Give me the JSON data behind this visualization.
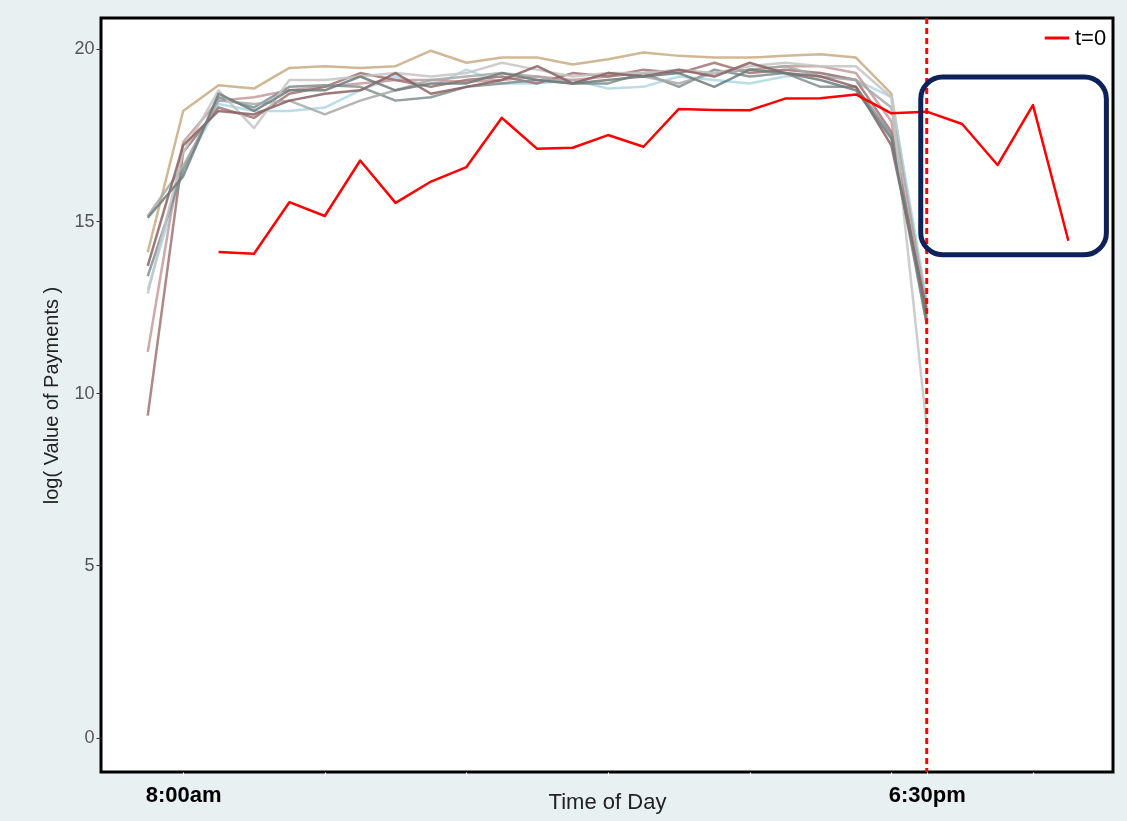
{
  "chart_data": {
    "type": "line",
    "xlabel": "Time of Day",
    "ylabel": "log( Value of Payments )",
    "xlim": [
      6.84,
      21.13
    ],
    "ylim": [
      -1,
      20.9
    ],
    "xticks": [
      {
        "value": 8,
        "label": "8:00am"
      },
      {
        "value": 10,
        "label": null
      },
      {
        "value": 12,
        "label": null
      },
      {
        "value": 14,
        "label": null
      },
      {
        "value": 16,
        "label": null
      },
      {
        "value": 18,
        "label": null
      },
      {
        "value": 18.5,
        "label": "6:30pm"
      },
      {
        "value": 20,
        "label": null
      }
    ],
    "yticks": [
      0,
      5,
      10,
      15,
      20
    ],
    "grid": false,
    "legend": "top right",
    "marker": "none",
    "line_style": "solid",
    "ref_lines": [
      {
        "axis": "x",
        "value": 18.5,
        "color": "#ff0000",
        "line_style": "dashed"
      }
    ],
    "series": [
      {
        "color": "#c8aa82",
        "x": [
          7.5,
          8,
          8.5,
          9,
          9.5,
          10,
          10.5,
          11,
          11.5,
          12,
          12.5,
          13,
          13.5,
          14,
          14.5,
          15,
          15.5,
          16,
          16.5,
          17,
          17.5,
          18,
          18.5
        ],
        "values": [
          14.1,
          18.2,
          18.95,
          18.85,
          19.45,
          19.5,
          19.45,
          19.5,
          19.95,
          19.6,
          19.75,
          19.75,
          19.55,
          19.7,
          19.9,
          19.8,
          19.75,
          19.75,
          19.8,
          19.85,
          19.75,
          18.7,
          12.3
        ]
      },
      {
        "color": "#add8e6",
        "x": [
          7.5,
          8,
          8.5,
          9,
          9.5,
          10,
          10.5,
          11,
          11.5,
          12,
          12.5,
          13,
          13.5,
          14,
          14.5,
          15,
          15.5,
          16,
          16.5,
          17,
          17.5,
          18,
          18.5
        ],
        "values": [
          13.0,
          16.5,
          18.4,
          18.2,
          18.2,
          18.3,
          18.8,
          19.2,
          18.9,
          19.4,
          19.0,
          19.0,
          19.1,
          18.85,
          18.9,
          19.2,
          19.1,
          19.0,
          19.2,
          19.3,
          19.1,
          18.6,
          12.7
        ]
      },
      {
        "color": "#c49a9a",
        "x": [
          7.5,
          8,
          8.5,
          9,
          9.5,
          10,
          10.5,
          11,
          11.5,
          12,
          12.5,
          13,
          13.5,
          14,
          14.5,
          15,
          15.5,
          16,
          16.5,
          17,
          17.5,
          18,
          18.5
        ],
        "values": [
          11.2,
          17.3,
          18.5,
          18.6,
          18.8,
          18.9,
          19.0,
          19.1,
          19.1,
          19.05,
          19.1,
          19.2,
          19.1,
          19.2,
          19.3,
          19.35,
          19.3,
          19.4,
          19.5,
          19.5,
          19.3,
          17.9,
          12.1
        ]
      },
      {
        "color": "#a07272",
        "x": [
          7.5,
          8,
          8.5,
          9,
          9.5,
          10,
          10.5,
          11,
          11.5,
          12,
          12.5,
          13,
          13.5,
          14,
          14.5,
          15,
          15.5,
          16,
          16.5,
          17,
          17.5,
          18,
          18.5
        ],
        "values": [
          9.35,
          17.0,
          18.3,
          18.0,
          18.7,
          18.9,
          19.3,
          19.1,
          18.9,
          19.1,
          19.2,
          19.0,
          19.3,
          19.2,
          19.4,
          19.3,
          19.6,
          19.3,
          19.4,
          19.3,
          19.1,
          17.6,
          12.3
        ]
      },
      {
        "color": "#7f8f8f",
        "x": [
          7.5,
          8,
          8.5,
          9,
          9.5,
          10,
          10.5,
          11,
          11.5,
          12,
          12.5,
          13,
          13.5,
          14,
          14.5,
          15,
          15.5,
          16,
          16.5,
          17,
          17.5,
          18,
          18.5
        ],
        "values": [
          13.4,
          16.5,
          18.6,
          18.3,
          18.9,
          18.95,
          18.9,
          18.5,
          18.6,
          18.9,
          19.0,
          19.1,
          19.0,
          19.0,
          19.3,
          18.9,
          19.4,
          19.2,
          19.3,
          18.9,
          18.9,
          17.5,
          12.2
        ]
      },
      {
        "color": "#a8a8a8",
        "x": [
          7.5,
          8,
          8.5,
          9,
          9.5,
          10,
          10.5,
          11,
          11.5,
          12,
          12.5,
          13,
          13.5,
          14,
          14.5,
          15,
          15.5,
          16,
          16.5,
          17,
          17.5,
          18,
          18.5
        ],
        "values": [
          15.15,
          16.6,
          18.5,
          18.4,
          18.5,
          18.1,
          18.5,
          18.8,
          19.1,
          19.2,
          19.3,
          19.2,
          19.0,
          19.3,
          19.2,
          19.0,
          19.3,
          19.4,
          19.5,
          19.2,
          19.1,
          18.3,
          12.5
        ]
      },
      {
        "color": "#c4c4c4",
        "x": [
          7.5,
          8,
          8.5,
          9,
          9.5,
          10,
          10.5,
          11,
          11.5,
          12,
          12.5,
          13,
          13.5,
          14,
          14.5,
          15,
          15.5,
          16,
          16.5,
          17,
          17.5,
          18,
          18.5
        ],
        "values": [
          12.9,
          17.0,
          18.8,
          17.7,
          19.1,
          19.1,
          19.2,
          19.3,
          19.2,
          19.3,
          19.6,
          19.4,
          19.2,
          19.3,
          19.3,
          19.4,
          19.3,
          19.5,
          19.6,
          19.5,
          19.5,
          18.6,
          9.0
        ]
      },
      {
        "color": "#8b6262",
        "x": [
          7.5,
          8,
          8.5,
          9,
          9.5,
          10,
          10.5,
          11,
          11.5,
          12,
          12.5,
          13,
          13.5,
          14,
          14.5,
          15,
          15.5,
          16,
          16.5,
          17,
          17.5,
          18,
          18.5
        ],
        "values": [
          13.7,
          17.2,
          18.2,
          18.1,
          18.5,
          18.7,
          18.8,
          19.3,
          18.7,
          18.9,
          19.1,
          19.5,
          19.0,
          19.3,
          19.2,
          19.4,
          19.2,
          19.6,
          19.3,
          19.2,
          18.9,
          17.2,
          12.4
        ]
      },
      {
        "color": "#6f7b7b",
        "x": [
          7.5,
          8,
          8.5,
          9,
          9.5,
          10,
          10.5,
          11,
          11.5,
          12,
          12.5,
          13,
          13.5,
          14,
          14.5,
          15,
          15.5,
          16,
          16.5,
          17,
          17.5,
          18,
          18.5
        ],
        "values": [
          15.1,
          16.3,
          18.7,
          18.2,
          18.8,
          18.8,
          19.2,
          18.8,
          19.0,
          19.0,
          19.3,
          19.1,
          19.0,
          19.1,
          19.2,
          19.3,
          18.9,
          19.4,
          19.3,
          19.1,
          18.8,
          17.4,
          12.0
        ]
      },
      {
        "name": "t=0",
        "color": "#ff0000",
        "x": [
          8.5,
          9,
          9.5,
          10,
          10.5,
          11,
          11.5,
          12,
          12.5,
          13,
          13.5,
          14,
          14.5,
          15,
          15.5,
          16,
          16.5,
          17,
          17.5,
          18,
          18.5,
          19,
          19.5,
          20,
          20.5
        ],
        "values": [
          14.1,
          14.05,
          15.55,
          15.15,
          16.76,
          15.53,
          16.15,
          16.57,
          18.0,
          17.1,
          17.13,
          17.5,
          17.16,
          18.26,
          18.23,
          18.22,
          18.56,
          18.57,
          18.68,
          18.13,
          18.18,
          17.82,
          16.63,
          18.37,
          14.43
        ]
      }
    ]
  }
}
